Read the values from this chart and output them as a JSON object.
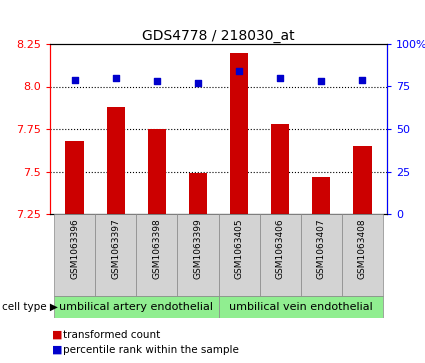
{
  "title": "GDS4778 / 218030_at",
  "samples": [
    "GSM1063396",
    "GSM1063397",
    "GSM1063398",
    "GSM1063399",
    "GSM1063405",
    "GSM1063406",
    "GSM1063407",
    "GSM1063408"
  ],
  "bar_values": [
    7.68,
    7.88,
    7.75,
    7.49,
    8.2,
    7.78,
    7.47,
    7.65
  ],
  "scatter_values": [
    79,
    80,
    78,
    77,
    84,
    80,
    78,
    79
  ],
  "ylim_left": [
    7.25,
    8.25
  ],
  "ylim_right": [
    0,
    100
  ],
  "yticks_left": [
    7.25,
    7.5,
    7.75,
    8.0,
    8.25
  ],
  "yticks_right": [
    0,
    25,
    50,
    75,
    100
  ],
  "bar_color": "#cc0000",
  "scatter_color": "#0000cc",
  "bar_bottom": 7.25,
  "group1_label": "umbilical artery endothelial",
  "group2_label": "umbilical vein endothelial",
  "group1_indices": [
    0,
    1,
    2,
    3
  ],
  "group2_indices": [
    4,
    5,
    6,
    7
  ],
  "cell_type_label": "cell type",
  "legend_bar_label": "transformed count",
  "legend_scatter_label": "percentile rank within the sample",
  "group_color": "#90EE90",
  "sample_box_color": "#d3d3d3",
  "title_fontsize": 10,
  "tick_fontsize": 8,
  "label_fontsize": 8,
  "sample_fontsize": 6.5,
  "group_fontsize": 8,
  "legend_fontsize": 7.5,
  "hgrid_values": [
    7.5,
    7.75,
    8.0
  ],
  "bar_width": 0.45
}
